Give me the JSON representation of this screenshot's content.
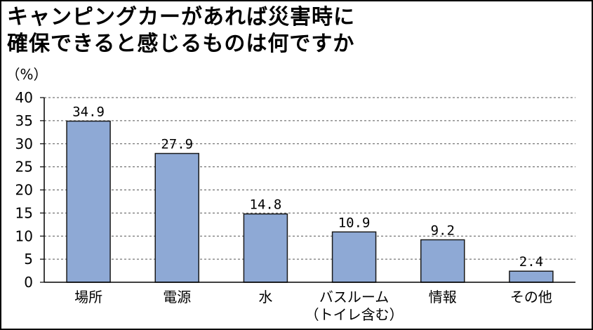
{
  "chart_data": {
    "type": "bar",
    "title_lines": [
      "キャンピングカーがあれば災害時に",
      "確保できると感じるものは何ですか"
    ],
    "ylabel": "（%）",
    "ylim": [
      0,
      40
    ],
    "yticks": [
      0,
      5,
      10,
      15,
      20,
      25,
      30,
      35,
      40
    ],
    "grid": true,
    "categories": [
      [
        "場所"
      ],
      [
        "電源"
      ],
      [
        "水"
      ],
      [
        "バスルーム",
        "（トイレ含む）"
      ],
      [
        "情報"
      ],
      [
        "その他"
      ]
    ],
    "values": [
      34.9,
      27.9,
      14.8,
      10.9,
      9.2,
      2.4
    ],
    "value_labels": [
      "34.9",
      "27.9",
      "14.8",
      "10.9",
      "9.2",
      "2.4"
    ],
    "colors": {
      "bar": "#8ea9d5",
      "bar_edge": "#1a1a1a",
      "grid": "#555555"
    }
  }
}
